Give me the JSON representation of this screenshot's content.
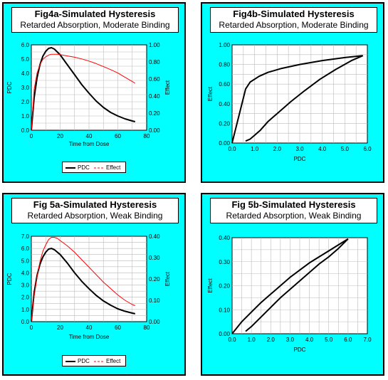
{
  "colors": {
    "panel_bg": "#00ffff",
    "pdc": "#000000",
    "effect": "#ff0000",
    "grid": "#bbbbbb"
  },
  "panels": [
    {
      "title": "Fig4a-Simulated Hysteresis",
      "subtitle": "Retarded Absorption, Moderate Binding"
    },
    {
      "title": "Fig4b-Simulated Hysteresis",
      "subtitle": "Retarded Absorption, Moderate Binding"
    },
    {
      "title": "Fig 5a-Simulated Hysteresis",
      "subtitle": "Retarded Absorption, Weak Binding"
    },
    {
      "title": "Fig 5b-Simulated Hysteresis",
      "subtitle": "Retarded Absorption, Weak Binding"
    }
  ],
  "chart_data": [
    {
      "type": "line",
      "xlabel": "Time from Dose",
      "ylabel": "PDC",
      "y2label": "Effect",
      "xlim": [
        0,
        80
      ],
      "ylim": [
        0,
        6
      ],
      "y2lim": [
        0,
        1
      ],
      "xticks": [
        "0",
        "20",
        "40",
        "60",
        "80"
      ],
      "yticks": [
        "0.0",
        "1.0",
        "2.0",
        "3.0",
        "4.0",
        "5.0",
        "6.0"
      ],
      "y2ticks": [
        "0.00",
        "0.20",
        "0.40",
        "0.60",
        "0.80",
        "1.00"
      ],
      "legend": {
        "position": "bottom",
        "pdc_label": "PDC",
        "effect_label": "Effect"
      },
      "series": [
        {
          "name": "PDC",
          "axis": "left",
          "x": [
            0,
            2,
            4,
            6,
            8,
            10,
            12,
            14,
            16,
            20,
            25,
            30,
            35,
            40,
            45,
            50,
            55,
            60,
            65,
            70,
            72
          ],
          "y": [
            0,
            2.3,
            3.7,
            4.6,
            5.2,
            5.55,
            5.75,
            5.8,
            5.7,
            5.3,
            4.6,
            3.9,
            3.2,
            2.6,
            2.05,
            1.6,
            1.25,
            1.0,
            0.8,
            0.65,
            0.6
          ]
        },
        {
          "name": "Effect",
          "axis": "right",
          "x": [
            0,
            2,
            4,
            6,
            8,
            10,
            12,
            14,
            16,
            18,
            20,
            25,
            30,
            35,
            40,
            45,
            50,
            55,
            60,
            65,
            70,
            72
          ],
          "y": [
            0,
            0.48,
            0.67,
            0.77,
            0.83,
            0.86,
            0.88,
            0.89,
            0.89,
            0.89,
            0.885,
            0.87,
            0.855,
            0.835,
            0.81,
            0.78,
            0.745,
            0.71,
            0.67,
            0.62,
            0.57,
            0.55
          ]
        }
      ]
    },
    {
      "type": "line",
      "xlabel": "PDC",
      "ylabel": "Effect",
      "xlim": [
        0,
        6
      ],
      "ylim": [
        0,
        1
      ],
      "xticks": [
        "0.0",
        "1.0",
        "2.0",
        "3.0",
        "4.0",
        "5.0",
        "6.0"
      ],
      "yticks": [
        "0.00",
        "0.20",
        "0.40",
        "0.60",
        "0.80",
        "1.00"
      ],
      "series": [
        {
          "name": "ascending",
          "axis": "left",
          "x": [
            0,
            0.6,
            0.8,
            1.2,
            1.6,
            2.2,
            3.0,
            4.0,
            5.0,
            5.8
          ],
          "y": [
            0,
            0.55,
            0.62,
            0.68,
            0.72,
            0.76,
            0.8,
            0.84,
            0.87,
            0.89
          ]
        },
        {
          "name": "descending",
          "axis": "left",
          "x": [
            5.8,
            5.3,
            4.6,
            3.9,
            3.2,
            2.6,
            2.05,
            1.6,
            1.25,
            1.0,
            0.8,
            0.6
          ],
          "y": [
            0.89,
            0.84,
            0.75,
            0.65,
            0.53,
            0.42,
            0.31,
            0.22,
            0.13,
            0.08,
            0.04,
            0.02
          ]
        }
      ]
    },
    {
      "type": "line",
      "xlabel": "Time from Dose",
      "ylabel": "PDC",
      "y2label": "Effect",
      "xlim": [
        0,
        80
      ],
      "ylim": [
        0,
        7
      ],
      "y2lim": [
        0,
        0.4
      ],
      "xticks": [
        "0",
        "20",
        "40",
        "60",
        "80"
      ],
      "yticks": [
        "0.0",
        "1.0",
        "2.0",
        "3.0",
        "4.0",
        "5.0",
        "6.0",
        "7.0"
      ],
      "y2ticks": [
        "0.00",
        "0.10",
        "0.20",
        "0.30",
        "0.40"
      ],
      "legend": {
        "position": "bottom",
        "pdc_label": "PDC",
        "effect_label": "Effect"
      },
      "series": [
        {
          "name": "PDC",
          "axis": "left",
          "x": [
            0,
            2,
            4,
            6,
            8,
            10,
            12,
            14,
            16,
            20,
            25,
            30,
            35,
            40,
            45,
            50,
            55,
            60,
            65,
            70,
            72
          ],
          "y": [
            0,
            2.4,
            3.8,
            4.7,
            5.3,
            5.7,
            5.95,
            6.0,
            5.9,
            5.5,
            4.8,
            4.0,
            3.3,
            2.7,
            2.15,
            1.7,
            1.35,
            1.05,
            0.85,
            0.7,
            0.65
          ]
        },
        {
          "name": "Effect",
          "axis": "right",
          "x": [
            0,
            2,
            4,
            6,
            8,
            10,
            12,
            14,
            16,
            18,
            20,
            25,
            30,
            35,
            40,
            45,
            50,
            55,
            60,
            65,
            70,
            72
          ],
          "y": [
            0,
            0.12,
            0.21,
            0.28,
            0.33,
            0.36,
            0.385,
            0.395,
            0.395,
            0.39,
            0.38,
            0.355,
            0.325,
            0.29,
            0.255,
            0.22,
            0.185,
            0.155,
            0.125,
            0.1,
            0.08,
            0.075
          ]
        }
      ]
    },
    {
      "type": "line",
      "xlabel": "PDC",
      "ylabel": "Effect",
      "xlim": [
        0,
        7
      ],
      "ylim": [
        0,
        0.4
      ],
      "xticks": [
        "0.0",
        "1.0",
        "2.0",
        "3.0",
        "4.0",
        "5.0",
        "6.0",
        "7.0"
      ],
      "yticks": [
        "0.00",
        "0.10",
        "0.20",
        "0.30",
        "0.40"
      ],
      "series": [
        {
          "name": "ascending",
          "axis": "left",
          "x": [
            0,
            0.5,
            1.0,
            1.5,
            2.0,
            2.5,
            3.0,
            3.5,
            4.0,
            4.5,
            5.0,
            5.5,
            6.0
          ],
          "y": [
            0,
            0.05,
            0.09,
            0.13,
            0.165,
            0.2,
            0.235,
            0.265,
            0.295,
            0.32,
            0.345,
            0.37,
            0.395
          ]
        },
        {
          "name": "descending",
          "axis": "left",
          "x": [
            6.0,
            5.5,
            5.0,
            4.5,
            4.0,
            3.5,
            3.0,
            2.5,
            2.0,
            1.5,
            1.0,
            0.7
          ],
          "y": [
            0.395,
            0.355,
            0.32,
            0.29,
            0.255,
            0.22,
            0.185,
            0.15,
            0.11,
            0.07,
            0.03,
            0.01
          ]
        }
      ]
    }
  ]
}
